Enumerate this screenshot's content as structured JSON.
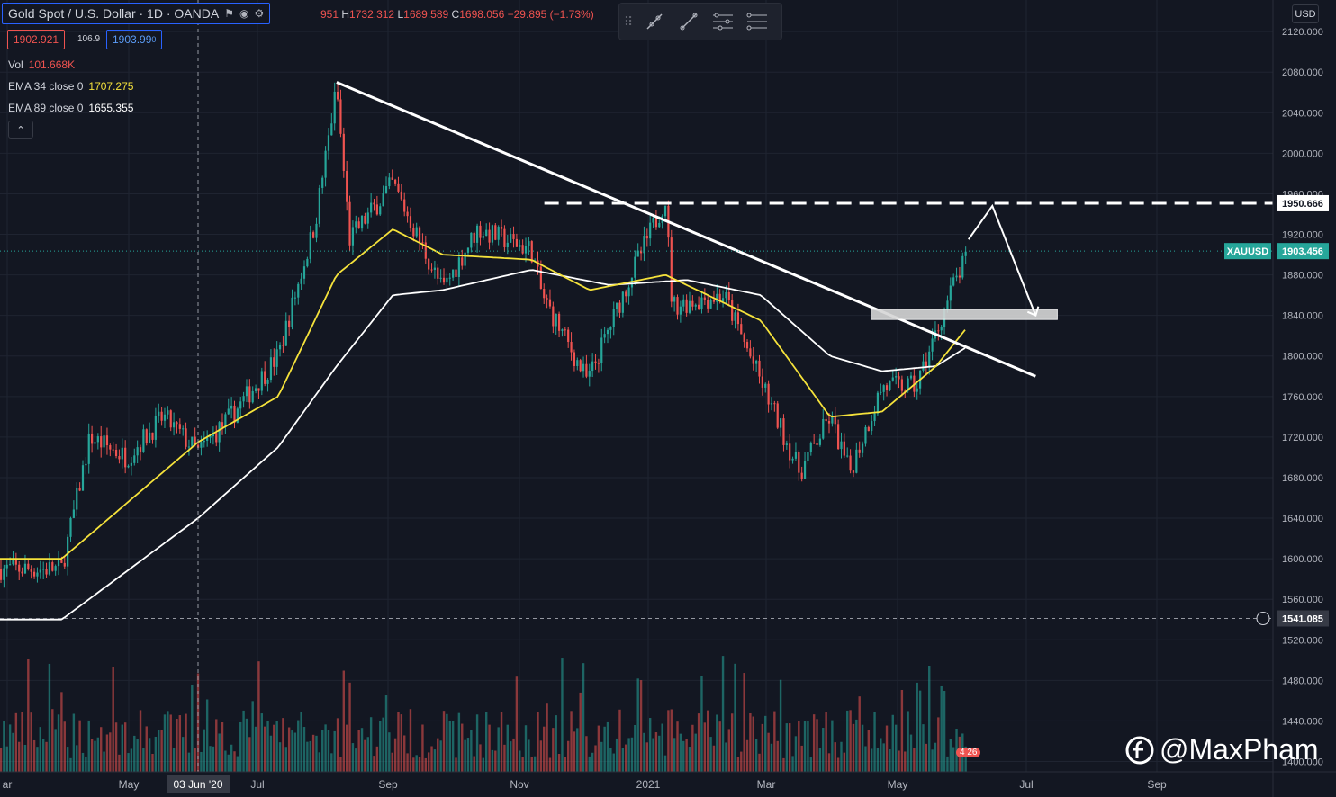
{
  "header": {
    "title": "Gold Spot / U.S. Dollar · 1D · OANDA",
    "ohlc_partial": "951",
    "high_label": "H",
    "high": "1732.312",
    "low_label": "L",
    "low": "1689.589",
    "close_label": "C",
    "close": "1698.056",
    "change": "−29.895 (−1.73%)",
    "bid": "1902.921",
    "spread": "106.9",
    "ask": "1903.99",
    "ask_suffix": "0"
  },
  "legend": {
    "vol_label": "Vol",
    "vol_value": "101.668K",
    "ema34_label": "EMA 34 close 0",
    "ema34_value": "1707.275",
    "ema89_label": "EMA 89 close 0",
    "ema89_value": "1655.355",
    "collapse": "⌃"
  },
  "currency": "USD",
  "watermark": "@MaxPham",
  "badge": "4 26",
  "colors": {
    "up": "#26a69a",
    "down": "#ef5350",
    "ema34": "#f5e23b",
    "ema89": "#ffffff",
    "grid": "#1f2431",
    "symbol_tag": "#26a69a"
  },
  "chart_data": {
    "type": "candlestick",
    "symbol": "XAUUSD",
    "price_axis": {
      "ticks": [
        "2120.000",
        "2080.000",
        "2040.000",
        "2000.000",
        "1960.000",
        "1920.000",
        "1880.000",
        "1840.000",
        "1800.000",
        "1760.000",
        "1720.000",
        "1680.000",
        "1640.000",
        "1600.000",
        "1560.000",
        "1520.000",
        "1480.000",
        "1440.000",
        "1400.000"
      ],
      "range": [
        1395,
        2138
      ]
    },
    "time_axis": {
      "ticks": [
        "ar",
        "May",
        "03 Jun '20",
        "Jul",
        "Sep",
        "Nov",
        "2021",
        "Mar",
        "May",
        "Jul",
        "Sep"
      ]
    },
    "last_price": {
      "label": "XAUUSD",
      "value": "1903.456"
    },
    "resistance_price": "1950.666",
    "crosshair_price": "1541.085",
    "crosshair_date": "03 Jun '20",
    "ohlc_series_keypoints": [
      {
        "d": "2020-04-01",
        "p": 1590
      },
      {
        "d": "2020-04-14",
        "p": 1720
      },
      {
        "d": "2020-05-01",
        "p": 1700
      },
      {
        "d": "2020-05-18",
        "p": 1740
      },
      {
        "d": "2020-06-03",
        "p": 1705
      },
      {
        "d": "2020-06-20",
        "p": 1745
      },
      {
        "d": "2020-07-10",
        "p": 1800
      },
      {
        "d": "2020-07-27",
        "p": 1930
      },
      {
        "d": "2020-08-06",
        "p": 2065
      },
      {
        "d": "2020-08-12",
        "p": 1915
      },
      {
        "d": "2020-09-01",
        "p": 1970
      },
      {
        "d": "2020-09-24",
        "p": 1865
      },
      {
        "d": "2020-10-10",
        "p": 1925
      },
      {
        "d": "2020-11-04",
        "p": 1905
      },
      {
        "d": "2020-11-09",
        "p": 1860
      },
      {
        "d": "2020-11-30",
        "p": 1775
      },
      {
        "d": "2020-12-20",
        "p": 1880
      },
      {
        "d": "2021-01-05",
        "p": 1955
      },
      {
        "d": "2021-01-08",
        "p": 1850
      },
      {
        "d": "2021-02-01",
        "p": 1860
      },
      {
        "d": "2021-02-18",
        "p": 1775
      },
      {
        "d": "2021-03-08",
        "p": 1685
      },
      {
        "d": "2021-03-22",
        "p": 1740
      },
      {
        "d": "2021-03-31",
        "p": 1685
      },
      {
        "d": "2021-04-15",
        "p": 1770
      },
      {
        "d": "2021-05-01",
        "p": 1770
      },
      {
        "d": "2021-05-18",
        "p": 1870
      },
      {
        "d": "2021-05-25",
        "p": 1900
      }
    ],
    "ema34_keypoints": [
      {
        "d": "2020-04-01",
        "p": 1600
      },
      {
        "d": "2020-06-03",
        "p": 1715
      },
      {
        "d": "2020-07-10",
        "p": 1760
      },
      {
        "d": "2020-08-06",
        "p": 1880
      },
      {
        "d": "2020-09-01",
        "p": 1925
      },
      {
        "d": "2020-09-24",
        "p": 1900
      },
      {
        "d": "2020-11-04",
        "p": 1895
      },
      {
        "d": "2020-12-01",
        "p": 1865
      },
      {
        "d": "2021-01-05",
        "p": 1880
      },
      {
        "d": "2021-02-18",
        "p": 1835
      },
      {
        "d": "2021-03-22",
        "p": 1740
      },
      {
        "d": "2021-04-15",
        "p": 1745
      },
      {
        "d": "2021-05-10",
        "p": 1790
      },
      {
        "d": "2021-05-25",
        "p": 1830
      }
    ],
    "ema89_keypoints": [
      {
        "d": "2020-04-01",
        "p": 1540
      },
      {
        "d": "2020-06-03",
        "p": 1640
      },
      {
        "d": "2020-07-10",
        "p": 1710
      },
      {
        "d": "2020-08-06",
        "p": 1790
      },
      {
        "d": "2020-09-01",
        "p": 1860
      },
      {
        "d": "2020-09-24",
        "p": 1865
      },
      {
        "d": "2020-11-04",
        "p": 1885
      },
      {
        "d": "2020-12-10",
        "p": 1870
      },
      {
        "d": "2021-01-15",
        "p": 1875
      },
      {
        "d": "2021-02-18",
        "p": 1860
      },
      {
        "d": "2021-03-22",
        "p": 1800
      },
      {
        "d": "2021-04-15",
        "p": 1785
      },
      {
        "d": "2021-05-10",
        "p": 1790
      },
      {
        "d": "2021-05-25",
        "p": 1810
      }
    ],
    "annotations": {
      "trendline": [
        {
          "d": "2020-08-06",
          "p": 2070
        },
        {
          "d": "2021-06-25",
          "p": 1780
        }
      ],
      "resistance_line": {
        "from": "2020-11-10",
        "p": 1950.666
      },
      "support_zone": {
        "from": "2021-04-10",
        "to": "2021-07-05",
        "top": 1846,
        "bottom": 1836
      },
      "forecast_path": [
        {
          "d": "2021-05-25",
          "p": 1915
        },
        {
          "d": "2021-06-05",
          "p": 1948
        },
        {
          "d": "2021-06-25",
          "p": 1840
        }
      ]
    },
    "grid": true
  }
}
